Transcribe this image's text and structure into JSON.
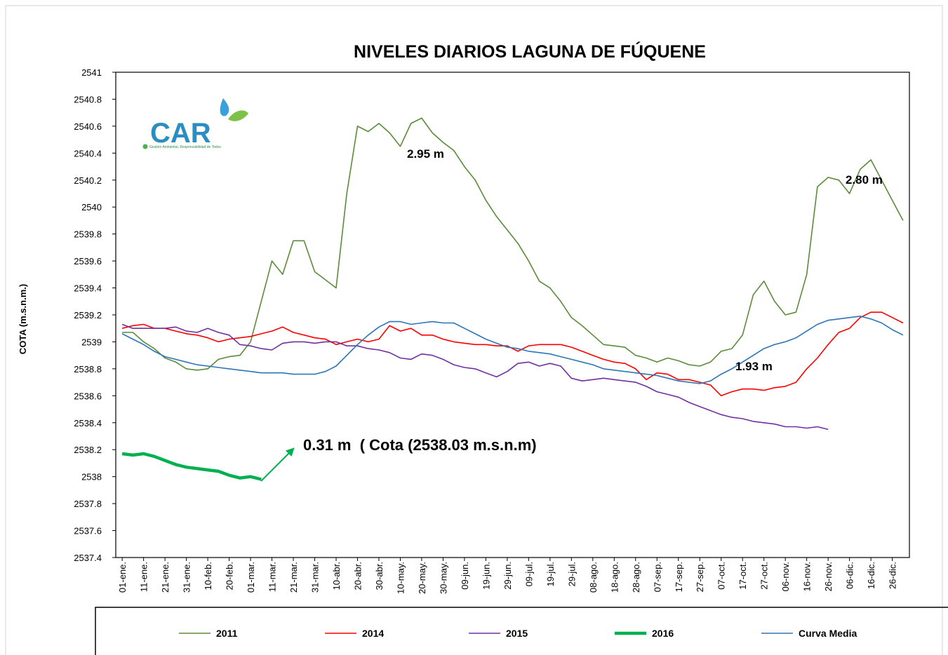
{
  "chart_data": {
    "type": "line",
    "title": "NIVELES DIARIOS LAGUNA DE FÚQUENE",
    "y_label": "COTA (m.s.n.m.)",
    "logo_text": "CAR",
    "logo_tagline": "Gestión Ambiental, Responsabilidad de Todos",
    "annotations": [
      "2.95 m",
      "2.80 m",
      "1.93 m",
      "0.31 m  ( Cota (2538.03 m.s.n.m)"
    ],
    "xlim": [
      -2,
      369
    ],
    "ylim": [
      2537.4,
      2541
    ],
    "yticks": [
      2537.4,
      2537.6,
      2537.8,
      2538,
      2538.2,
      2538.4,
      2538.6,
      2538.8,
      2539,
      2539.2,
      2539.4,
      2539.6,
      2539.8,
      2540,
      2540.2,
      2540.4,
      2540.6,
      2540.8,
      2541
    ],
    "xticks": [
      {
        "value": 1,
        "label": "01-ene."
      },
      {
        "value": 11,
        "label": "11-ene."
      },
      {
        "value": 21,
        "label": "21-ene."
      },
      {
        "value": 31,
        "label": "31-ene."
      },
      {
        "value": 41,
        "label": "10-feb."
      },
      {
        "value": 51,
        "label": "20-feb."
      },
      {
        "value": 61,
        "label": "01-mar."
      },
      {
        "value": 71,
        "label": "11-mar."
      },
      {
        "value": 81,
        "label": "21-mar."
      },
      {
        "value": 91,
        "label": "31-mar."
      },
      {
        "value": 101,
        "label": "10-abr."
      },
      {
        "value": 111,
        "label": "20-abr."
      },
      {
        "value": 121,
        "label": "30-abr."
      },
      {
        "value": 131,
        "label": "10-may."
      },
      {
        "value": 141,
        "label": "20-may."
      },
      {
        "value": 151,
        "label": "30-may."
      },
      {
        "value": 161,
        "label": "09-jun."
      },
      {
        "value": 171,
        "label": "19-jun."
      },
      {
        "value": 181,
        "label": "29-jun."
      },
      {
        "value": 191,
        "label": "09-jul."
      },
      {
        "value": 201,
        "label": "19-jul."
      },
      {
        "value": 211,
        "label": "29-jul."
      },
      {
        "value": 221,
        "label": "08-ago."
      },
      {
        "value": 231,
        "label": "18-ago."
      },
      {
        "value": 241,
        "label": "28-ago."
      },
      {
        "value": 251,
        "label": "07-sep."
      },
      {
        "value": 261,
        "label": "17-sep."
      },
      {
        "value": 271,
        "label": "27-sep."
      },
      {
        "value": 281,
        "label": "07-oct."
      },
      {
        "value": 291,
        "label": "17-oct."
      },
      {
        "value": 301,
        "label": "27-oct."
      },
      {
        "value": 311,
        "label": "06-nov."
      },
      {
        "value": 321,
        "label": "16-nov."
      },
      {
        "value": 331,
        "label": "26-nov."
      },
      {
        "value": 341,
        "label": "06-dic."
      },
      {
        "value": 351,
        "label": "16-dic."
      },
      {
        "value": 361,
        "label": "26-dic."
      }
    ],
    "x": [
      1,
      6,
      11,
      16,
      21,
      26,
      31,
      36,
      41,
      46,
      51,
      56,
      61,
      66,
      71,
      76,
      81,
      86,
      91,
      96,
      101,
      106,
      111,
      116,
      121,
      126,
      131,
      136,
      141,
      146,
      151,
      156,
      161,
      166,
      171,
      176,
      181,
      186,
      191,
      196,
      201,
      206,
      211,
      216,
      221,
      226,
      231,
      236,
      241,
      246,
      251,
      256,
      261,
      266,
      271,
      276,
      281,
      286,
      291,
      296,
      301,
      306,
      311,
      316,
      321,
      326,
      331,
      336,
      341,
      346,
      351,
      356,
      361,
      366
    ],
    "series": [
      {
        "name": "2011",
        "color": "#5b8c3a",
        "width": 1.6,
        "values": [
          2539.07,
          2539.07,
          2539.0,
          2538.95,
          2538.88,
          2538.85,
          2538.8,
          2538.79,
          2538.8,
          2538.87,
          2538.89,
          2538.9,
          2539.0,
          2539.3,
          2539.6,
          2539.5,
          2539.75,
          2539.75,
          2539.52,
          2539.46,
          2539.4,
          2540.1,
          2540.6,
          2540.56,
          2540.62,
          2540.55,
          2540.45,
          2540.62,
          2540.66,
          2540.55,
          2540.48,
          2540.42,
          2540.3,
          2540.2,
          2540.05,
          2539.93,
          2539.83,
          2539.73,
          2539.6,
          2539.45,
          2539.4,
          2539.3,
          2539.18,
          2539.12,
          2539.05,
          2538.98,
          2538.97,
          2538.96,
          2538.9,
          2538.88,
          2538.85,
          2538.88,
          2538.86,
          2538.83,
          2538.82,
          2538.85,
          2538.93,
          2538.95,
          2539.05,
          2539.35,
          2539.45,
          2539.3,
          2539.2,
          2539.22,
          2539.5,
          2540.15,
          2540.22,
          2540.2,
          2540.1,
          2540.28,
          2540.35,
          2540.2,
          2540.05,
          2539.9
        ]
      },
      {
        "name": "2014",
        "color": "#ff0000",
        "width": 1.6,
        "values": [
          2539.1,
          2539.12,
          2539.13,
          2539.1,
          2539.1,
          2539.08,
          2539.06,
          2539.05,
          2539.03,
          2539.0,
          2539.02,
          2539.03,
          2539.04,
          2539.06,
          2539.08,
          2539.11,
          2539.07,
          2539.05,
          2539.03,
          2539.02,
          2538.98,
          2539.0,
          2539.02,
          2539.0,
          2539.02,
          2539.12,
          2539.08,
          2539.1,
          2539.05,
          2539.05,
          2539.02,
          2539.0,
          2538.99,
          2538.98,
          2538.98,
          2538.97,
          2538.97,
          2538.93,
          2538.97,
          2538.98,
          2538.98,
          2538.98,
          2538.96,
          2538.93,
          2538.9,
          2538.87,
          2538.85,
          2538.84,
          2538.8,
          2538.72,
          2538.77,
          2538.76,
          2538.72,
          2538.72,
          2538.7,
          2538.68,
          2538.6,
          2538.63,
          2538.65,
          2538.65,
          2538.64,
          2538.66,
          2538.67,
          2538.7,
          2538.8,
          2538.88,
          2538.98,
          2539.07,
          2539.1,
          2539.18,
          2539.22,
          2539.22,
          2539.18,
          2539.14
        ]
      },
      {
        "name": "2015",
        "color": "#7030a0",
        "width": 1.6,
        "values": [
          2539.13,
          2539.1,
          2539.1,
          2539.1,
          2539.1,
          2539.11,
          2539.08,
          2539.07,
          2539.1,
          2539.07,
          2539.05,
          2538.98,
          2538.97,
          2538.95,
          2538.94,
          2538.99,
          2539.0,
          2539.0,
          2538.99,
          2539.0,
          2539.0,
          2538.97,
          2538.97,
          2538.95,
          2538.94,
          2538.92,
          2538.88,
          2538.87,
          2538.91,
          2538.9,
          2538.87,
          2538.83,
          2538.81,
          2538.8,
          2538.77,
          2538.74,
          2538.78,
          2538.84,
          2538.85,
          2538.82,
          2538.84,
          2538.82,
          2538.73,
          2538.71,
          2538.72,
          2538.73,
          2538.72,
          2538.71,
          2538.7,
          2538.67,
          2538.63,
          2538.61,
          2538.59,
          2538.55,
          2538.52,
          2538.49,
          2538.46,
          2538.44,
          2538.43,
          2538.41,
          2538.4,
          2538.39,
          2538.37,
          2538.37,
          2538.36,
          2538.37,
          2538.35,
          null,
          null,
          null,
          null,
          null,
          null,
          null
        ]
      },
      {
        "name": "2016",
        "color": "#00b050",
        "width": 4.5,
        "values": [
          2538.17,
          2538.16,
          2538.17,
          2538.15,
          2538.12,
          2538.09,
          2538.07,
          2538.06,
          2538.05,
          2538.04,
          2538.01,
          2537.99,
          2538.0,
          2537.98,
          null,
          null,
          null,
          null,
          null,
          null,
          null,
          null,
          null,
          null,
          null,
          null,
          null,
          null,
          null,
          null,
          null,
          null,
          null,
          null,
          null,
          null,
          null,
          null,
          null,
          null,
          null,
          null,
          null,
          null,
          null,
          null,
          null,
          null,
          null,
          null,
          null,
          null,
          null,
          null,
          null,
          null,
          null,
          null,
          null,
          null,
          null,
          null,
          null,
          null,
          null,
          null,
          null,
          null,
          null,
          null,
          null,
          null,
          null,
          null
        ]
      },
      {
        "name": "Curva Media",
        "color": "#2e75b6",
        "width": 1.6,
        "values": [
          2539.06,
          2539.02,
          2538.98,
          2538.93,
          2538.89,
          2538.87,
          2538.85,
          2538.83,
          2538.82,
          2538.81,
          2538.8,
          2538.79,
          2538.78,
          2538.77,
          2538.77,
          2538.77,
          2538.76,
          2538.76,
          2538.76,
          2538.78,
          2538.82,
          2538.9,
          2538.98,
          2539.05,
          2539.11,
          2539.15,
          2539.15,
          2539.13,
          2539.14,
          2539.15,
          2539.14,
          2539.14,
          2539.1,
          2539.06,
          2539.02,
          2538.99,
          2538.96,
          2538.95,
          2538.93,
          2538.92,
          2538.91,
          2538.89,
          2538.87,
          2538.85,
          2538.83,
          2538.8,
          2538.79,
          2538.78,
          2538.77,
          2538.76,
          2538.75,
          2538.73,
          2538.71,
          2538.7,
          2538.69,
          2538.71,
          2538.76,
          2538.8,
          2538.85,
          2538.9,
          2538.95,
          2538.98,
          2539.0,
          2539.03,
          2539.08,
          2539.13,
          2539.16,
          2539.17,
          2539.18,
          2539.19,
          2539.17,
          2539.14,
          2539.09,
          2539.05
        ]
      }
    ]
  }
}
